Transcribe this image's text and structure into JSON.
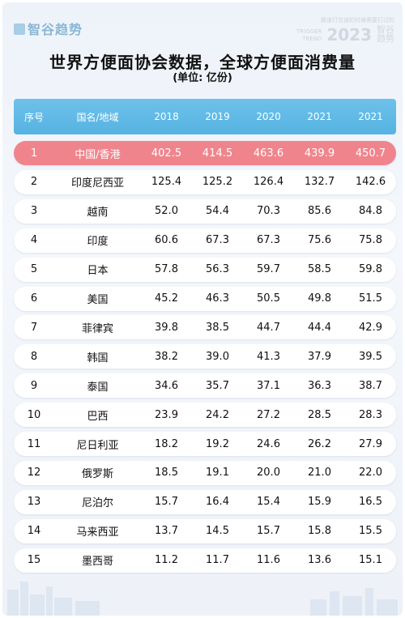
{
  "brand": {
    "name": "智谷趋势"
  },
  "watermark": {
    "top_line": "跟谁打交道的时候需要打过的",
    "trigger": "TRIGGER",
    "trend": "TREND",
    "year": "2023",
    "name_line1": "智谷",
    "name_line2": "趋势"
  },
  "title": "世界方便面协会数据，全球方便面消费量",
  "subtitle": "(单位: 亿份)",
  "colors": {
    "header": "#5ab6e4",
    "highlight": "#f0848c"
  },
  "chart_data": {
    "type": "table",
    "title": "世界方便面协会数据，全球方便面消费量",
    "unit": "(单位: 亿份)",
    "columns": [
      "序号",
      "国名/地域",
      "2018",
      "2019",
      "2020",
      "2021",
      "2021"
    ],
    "rows": [
      [
        "1",
        "中国/香港",
        "402.5",
        "414.5",
        "463.6",
        "439.9",
        "450.7"
      ],
      [
        "2",
        "印度尼西亚",
        "125.4",
        "125.2",
        "126.4",
        "132.7",
        "142.6"
      ],
      [
        "3",
        "越南",
        "52.0",
        "54.4",
        "70.3",
        "85.6",
        "84.8"
      ],
      [
        "4",
        "印度",
        "60.6",
        "67.3",
        "67.3",
        "75.6",
        "75.8"
      ],
      [
        "5",
        "日本",
        "57.8",
        "56.3",
        "59.7",
        "58.5",
        "59.8"
      ],
      [
        "6",
        "美国",
        "45.2",
        "46.3",
        "50.5",
        "49.8",
        "51.5"
      ],
      [
        "7",
        "菲律宾",
        "39.8",
        "38.5",
        "44.7",
        "44.4",
        "42.9"
      ],
      [
        "8",
        "韩国",
        "38.2",
        "39.0",
        "41.3",
        "37.9",
        "39.5"
      ],
      [
        "9",
        "泰国",
        "34.6",
        "35.7",
        "37.1",
        "36.3",
        "38.7"
      ],
      [
        "10",
        "巴西",
        "23.9",
        "24.2",
        "27.2",
        "28.5",
        "28.3"
      ],
      [
        "11",
        "尼日利亚",
        "18.2",
        "19.2",
        "24.6",
        "26.2",
        "27.9"
      ],
      [
        "12",
        "俄罗斯",
        "18.5",
        "19.1",
        "20.0",
        "21.0",
        "22.0"
      ],
      [
        "13",
        "尼泊尔",
        "15.7",
        "16.4",
        "15.4",
        "15.9",
        "16.5"
      ],
      [
        "14",
        "马来西亚",
        "13.7",
        "14.5",
        "15.7",
        "15.8",
        "15.5"
      ],
      [
        "15",
        "墨西哥",
        "11.2",
        "11.7",
        "11.6",
        "13.6",
        "15.1"
      ]
    ],
    "highlight_row": 0
  }
}
